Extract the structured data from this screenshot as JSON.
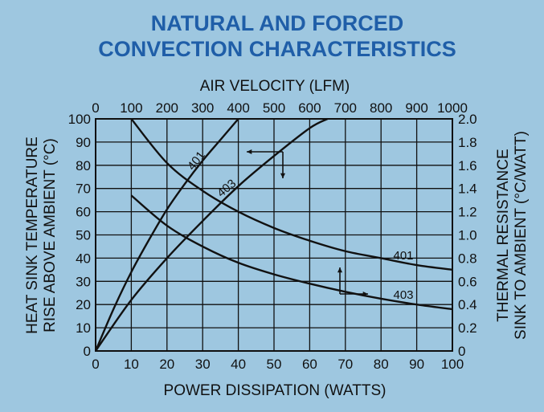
{
  "chart_data": {
    "type": "line",
    "title_lines": [
      "NATURAL AND FORCED",
      "CONVECTION CHARACTERISTICS"
    ],
    "top_axis": {
      "label": "AIR VELOCITY (LFM)",
      "range": [
        0,
        1000
      ],
      "ticks": [
        "0",
        "100",
        "200",
        "300",
        "400",
        "500",
        "600",
        "700",
        "800",
        "900",
        "1000"
      ]
    },
    "bottom_axis": {
      "label": "POWER DISSIPATION (WATTS)",
      "range": [
        0,
        100
      ],
      "ticks": [
        "0",
        "10",
        "20",
        "30",
        "40",
        "50",
        "60",
        "70",
        "80",
        "90",
        "100"
      ]
    },
    "left_axis": {
      "label_lines": [
        "HEAT SINK TEMPERATURE",
        "RISE ABOVE AMBIENT (°C)"
      ],
      "range": [
        0,
        100
      ],
      "ticks": [
        "0",
        "10",
        "20",
        "30",
        "40",
        "50",
        "60",
        "70",
        "80",
        "90",
        "100"
      ]
    },
    "right_axis": {
      "label_lines": [
        "THERMAL RESISTANCE",
        "SINK TO AMBIENT (°C/WATT)"
      ],
      "range": [
        0,
        2.0
      ],
      "ticks": [
        "0",
        "0.2",
        "0.4",
        "0.6",
        "0.8",
        "1.0",
        "1.2",
        "1.4",
        "1.6",
        "1.8",
        "2.0"
      ]
    },
    "grid": true,
    "series": [
      {
        "name": "401",
        "kind": "temperature rise vs power dissipation",
        "axes": "bottom-left",
        "x": [
          0,
          5,
          10,
          15,
          20,
          25,
          30,
          35,
          40
        ],
        "y": [
          0,
          18,
          34,
          48,
          61,
          72,
          82,
          91,
          100
        ]
      },
      {
        "name": "403",
        "kind": "temperature rise vs power dissipation",
        "axes": "bottom-left",
        "x": [
          0,
          10,
          20,
          30,
          40,
          50,
          60,
          65
        ],
        "y": [
          0,
          22,
          40,
          56,
          71,
          84,
          96,
          100
        ]
      },
      {
        "name": "401",
        "kind": "thermal resistance vs air velocity",
        "axes": "top-right",
        "x": [
          100,
          200,
          300,
          400,
          500,
          600,
          700,
          800,
          900,
          1000
        ],
        "y": [
          2.0,
          1.62,
          1.38,
          1.2,
          1.06,
          0.95,
          0.86,
          0.8,
          0.74,
          0.7
        ]
      },
      {
        "name": "403",
        "kind": "thermal resistance vs air velocity",
        "axes": "top-right",
        "x": [
          100,
          200,
          300,
          400,
          500,
          600,
          700,
          800,
          900,
          1000
        ],
        "y": [
          1.34,
          1.08,
          0.9,
          0.76,
          0.66,
          0.58,
          0.51,
          0.45,
          0.4,
          0.36
        ]
      }
    ],
    "annotations": [
      {
        "text": "401",
        "for": "temperature curve 401"
      },
      {
        "text": "403",
        "for": "temperature curve 403"
      },
      {
        "text": "401",
        "for": "resistance curve 401"
      },
      {
        "text": "403",
        "for": "resistance curve 403"
      }
    ]
  }
}
